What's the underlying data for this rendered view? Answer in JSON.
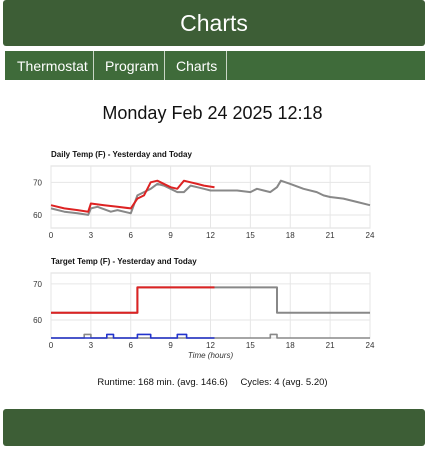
{
  "header": {
    "title": "Charts"
  },
  "tabs": [
    {
      "label": "Thermostat"
    },
    {
      "label": "Program"
    },
    {
      "label": "Charts"
    }
  ],
  "datetime": "Monday Feb 24 2025 12:18",
  "colors": {
    "header_bg": "#3d5e36",
    "tab_bg": "#3f6b3a",
    "today": "#dd2222",
    "yesterday": "#888888",
    "cycles": "#2233cc"
  },
  "chart_data": [
    {
      "type": "line",
      "title": "Daily Temp (F) - Yesterday and Today",
      "xlim": [
        0,
        24
      ],
      "ylim": [
        56,
        75
      ],
      "xticks": [
        0,
        3,
        6,
        9,
        12,
        15,
        18,
        21,
        24
      ],
      "yticks": [
        60,
        70
      ],
      "grid": true,
      "series": [
        {
          "key": "yesterday",
          "color": "#888888",
          "x": [
            0,
            1,
            2,
            2.8,
            3,
            3.5,
            4.5,
            5,
            6,
            6.5,
            7,
            7.5,
            8,
            8.5,
            9,
            9.5,
            10,
            10.5,
            11,
            11.5,
            12,
            13,
            14,
            15,
            15.5,
            16,
            16.5,
            17,
            17.3,
            18,
            19,
            20,
            20.5,
            21,
            22,
            23,
            24
          ],
          "y": [
            62,
            61,
            60.5,
            60,
            62,
            62.5,
            61,
            61.5,
            60.5,
            66,
            67,
            68,
            69.5,
            69,
            68,
            67,
            67,
            69,
            68.5,
            68,
            67.5,
            67.5,
            67.5,
            67,
            68,
            67.5,
            67,
            68.5,
            70.5,
            69.5,
            68,
            67,
            66,
            65.5,
            65,
            64,
            63
          ]
        },
        {
          "key": "today",
          "color": "#dd2222",
          "x": [
            0,
            1,
            2,
            2.8,
            3,
            4,
            5,
            6,
            6.5,
            7,
            7.5,
            8,
            9,
            9.5,
            10,
            10.5,
            11,
            11.5,
            12.3
          ],
          "y": [
            63,
            62,
            61.5,
            61,
            63.5,
            63,
            62.5,
            62,
            65,
            66,
            70,
            70.5,
            68.5,
            68,
            70.5,
            70,
            69.5,
            69,
            68.5
          ]
        }
      ]
    },
    {
      "type": "line",
      "title": "Target Temp (F) - Yesterday and Today",
      "xlabel": "Time (hours)",
      "xlim": [
        0,
        24
      ],
      "ylim": [
        55,
        73
      ],
      "xticks": [
        0,
        3,
        6,
        9,
        12,
        15,
        18,
        21,
        24
      ],
      "yticks": [
        60,
        70
      ],
      "grid": true,
      "series": [
        {
          "key": "yesterday_target",
          "color": "#888888",
          "x": [
            0,
            6.5,
            6.5,
            17,
            17,
            24
          ],
          "y": [
            62,
            62,
            69,
            69,
            62,
            62
          ]
        },
        {
          "key": "today_target",
          "color": "#dd2222",
          "x": [
            0,
            6.5,
            6.5,
            12.3
          ],
          "y": [
            62,
            62,
            69,
            69
          ]
        },
        {
          "key": "yesterday_cycles",
          "color": "#888888",
          "x": [
            0,
            2.5,
            2.5,
            3,
            3,
            16.5,
            16.5,
            17,
            17,
            24
          ],
          "y": [
            55,
            55,
            56,
            56,
            55,
            55,
            56,
            56,
            55,
            55
          ]
        },
        {
          "key": "today_cycles",
          "color": "#2233cc",
          "x": [
            0,
            4.2,
            4.2,
            4.7,
            4.7,
            6.5,
            6.5,
            7.5,
            7.5,
            9.5,
            9.5,
            10.2,
            10.2,
            12.3
          ],
          "y": [
            55,
            55,
            56,
            56,
            55,
            55,
            56,
            56,
            55,
            55,
            56,
            56,
            55,
            55
          ]
        }
      ]
    }
  ],
  "stats": {
    "runtime": "Runtime: 168 min. (avg. 146.6)",
    "cycles": "Cycles: 4 (avg. 5.20)"
  }
}
